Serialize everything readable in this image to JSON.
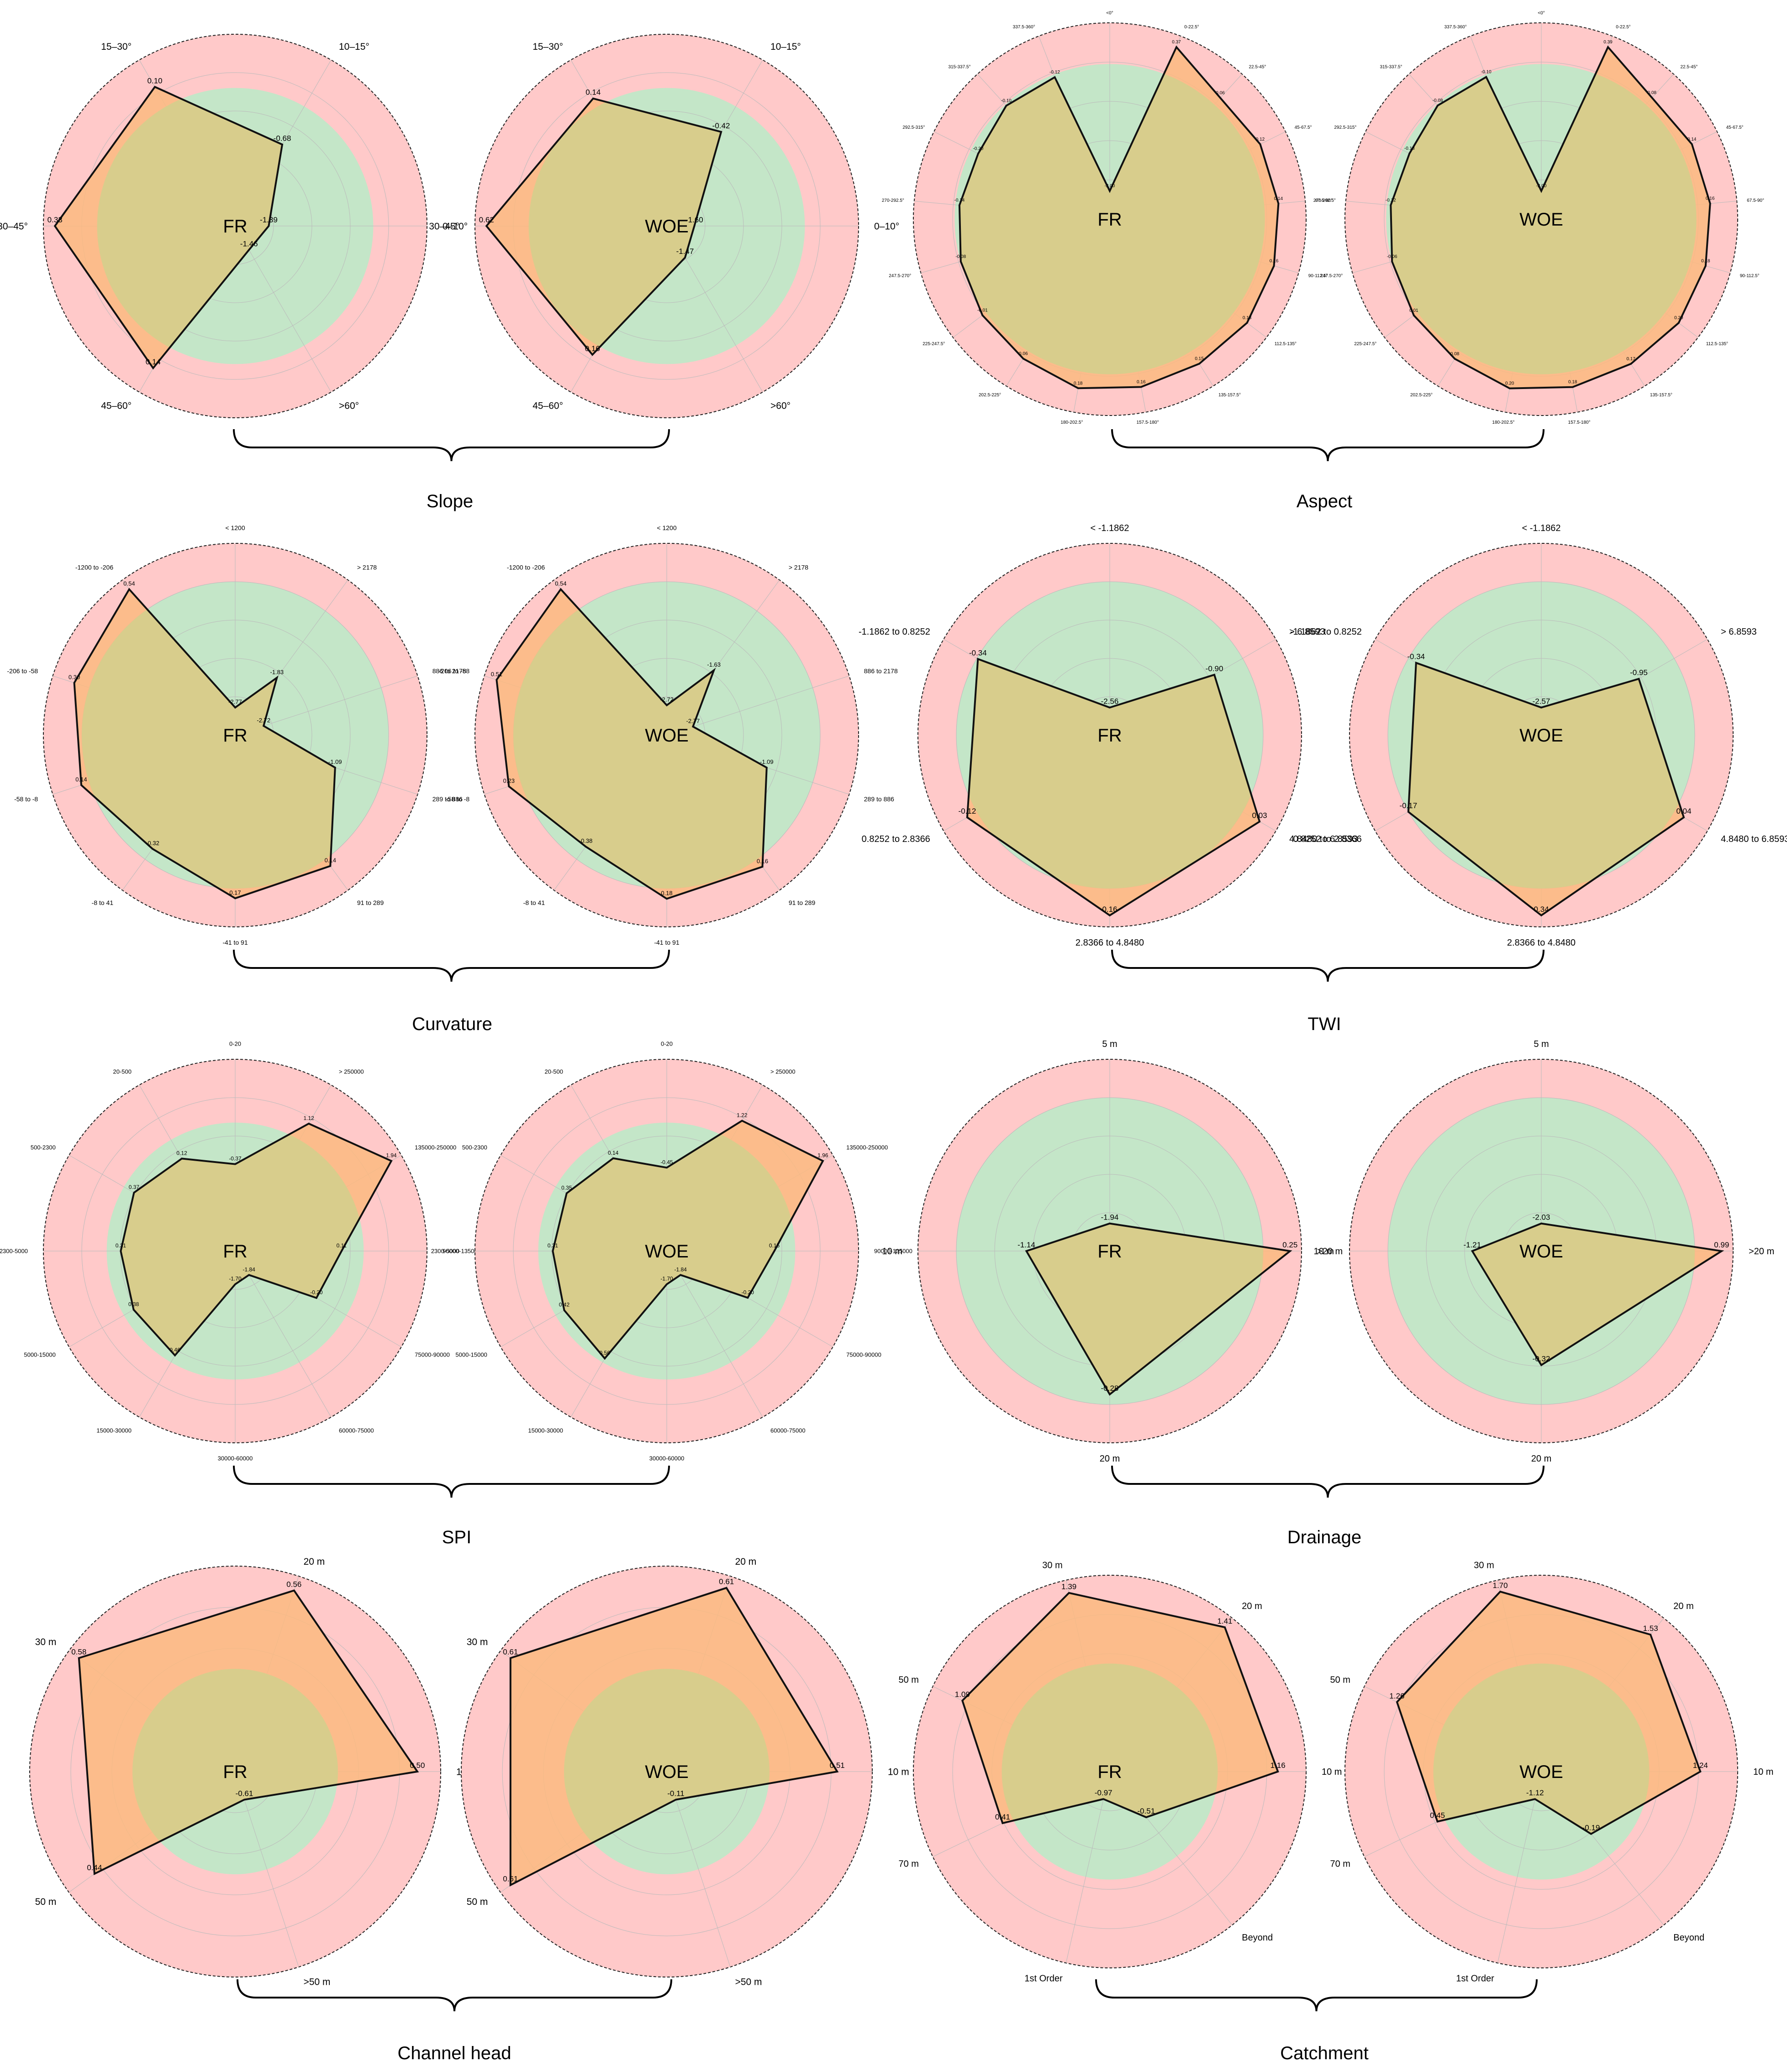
{
  "colors": {
    "outer": "#ffc9c9",
    "inner": "#c4e6c8",
    "fill_mix": "#d8cd8c",
    "fill_over": "#fcba80",
    "polyline": "#111111"
  },
  "groups": [
    {
      "caption": "Slope"
    },
    {
      "caption": "Aspect"
    },
    {
      "caption": "Curvature"
    },
    {
      "caption": "TWI"
    },
    {
      "caption": "SPI"
    },
    {
      "caption": "Drainage"
    },
    {
      "caption": "Channel head"
    },
    {
      "caption": "Catchment"
    }
  ],
  "chart_data": [
    {
      "type": "radar",
      "title": "FR",
      "group": "Slope",
      "categories": [
        "0–10°",
        "10–15°",
        "15–30°",
        "30–45°",
        "45–60°",
        ">60°"
      ],
      "values": [
        -1.39,
        -0.68,
        0.1,
        0.33,
        0.14,
        -1.46
      ],
      "inner_radius": 0.72
    },
    {
      "type": "radar",
      "title": "WOE",
      "group": "Slope",
      "categories": [
        "0–10°",
        "10–15°",
        "15–30°",
        "30–45°",
        "45–60°",
        ">60°"
      ],
      "values": [
        -1.6,
        -0.42,
        0.14,
        0.62,
        0.16,
        -1.47
      ],
      "inner_radius": 0.72
    },
    {
      "type": "radar",
      "title": "FR",
      "group": "Aspect",
      "categories": [
        "<0°",
        "0-22.5°",
        "22.5-45°",
        "45-67.5°",
        "67.5-90°",
        "90-112.5°",
        "112.5-135°",
        "135-157.5°",
        "157.5-180°",
        "180-202.5°",
        "202.5-225°",
        "225-247.5°",
        "247.5-270°",
        "270-292.5°",
        "292.5-315°",
        "315-337.5°",
        "337.5-360°"
      ],
      "values": [
        -2.0,
        0.37,
        0.06,
        0.12,
        0.14,
        0.16,
        0.18,
        0.15,
        0.16,
        0.18,
        0.06,
        -0.01,
        -0.08,
        -0.14,
        -0.2,
        -0.1,
        -0.12
      ],
      "inner_radius": 0.79
    },
    {
      "type": "radar",
      "title": "WOE",
      "group": "Aspect",
      "categories": [
        "<0°",
        "0-22.5°",
        "22.5-45°",
        "45-67.5°",
        "67.5-90°",
        "90-112.5°",
        "112.5-135°",
        "135-157.5°",
        "157.5-180°",
        "180-202.5°",
        "202.5-225°",
        "225-247.5°",
        "247.5-270°",
        "270-292.5°",
        "292.5-315°",
        "315-337.5°",
        "337.5-360°"
      ],
      "values": [
        -2.0,
        0.39,
        0.08,
        0.14,
        0.16,
        0.18,
        0.2,
        0.17,
        0.18,
        0.2,
        0.08,
        0.01,
        -0.06,
        -0.12,
        -0.18,
        -0.08,
        -0.1
      ],
      "inner_radius": 0.79
    },
    {
      "type": "radar",
      "title": "FR",
      "group": "Curvature",
      "categories": [
        "< 1200",
        "> 2178",
        "886 to 2178",
        "289 to 886",
        "91 to 289",
        "-41 to 91",
        "-8 to 41",
        "-58 to -8",
        "-206 to -58",
        "-1200 to -206"
      ],
      "values": [
        -2.77,
        -1.83,
        -2.72,
        -1.09,
        0.14,
        0.17,
        -0.32,
        0.14,
        0.3,
        0.54
      ],
      "inner_radius": 0.8
    },
    {
      "type": "radar",
      "title": "WOE",
      "group": "Curvature",
      "categories": [
        "< 1200",
        "> 2178",
        "886 to 2178",
        "289 to 886",
        "91 to 289",
        "-41 to 91",
        "-8 to 41",
        "-58 to -8",
        "-206 to -58",
        "-1200 to -206"
      ],
      "values": [
        -2.72,
        -1.63,
        -2.77,
        -1.09,
        0.16,
        0.18,
        -0.38,
        0.23,
        0.51,
        0.54
      ],
      "inner_radius": 0.8
    },
    {
      "type": "radar",
      "title": "FR",
      "group": "TWI",
      "categories": [
        "< -1.1862",
        "> 6.8593",
        "4.8480 to 6.8593",
        "2.8366 to 4.8480",
        "0.8252 to 2.8366",
        "-1.1862 to 0.8252"
      ],
      "values": [
        -2.56,
        -0.9,
        0.03,
        0.16,
        -0.12,
        -0.34
      ],
      "inner_radius": 0.8
    },
    {
      "type": "radar",
      "title": "WOE",
      "group": "TWI",
      "categories": [
        "< -1.1862",
        "> 6.8593",
        "4.8480 to 6.8593",
        "2.8366 to 4.8480",
        "0.8252 to 2.8366",
        "-1.1862 to 0.8252"
      ],
      "values": [
        -2.57,
        -0.95,
        0.04,
        0.34,
        -0.17,
        -0.34
      ],
      "inner_radius": 0.8
    },
    {
      "type": "radar",
      "title": "FR",
      "group": "SPI",
      "categories": [
        "0-20",
        "> 250000",
        "135000-250000",
        "90000-135000",
        "75000-90000",
        "60000-75000",
        "30000-60000",
        "15000-30000",
        "5000-15000",
        "2300-5000",
        "500-2300",
        "20-500"
      ],
      "values": [
        -0.37,
        1.12,
        1.94,
        0.11,
        -0.2,
        -1.84,
        -1.7,
        0.46,
        0.38,
        0.31,
        0.37,
        0.12
      ],
      "inner_radius": 0.67
    },
    {
      "type": "radar",
      "title": "WOE",
      "group": "SPI",
      "categories": [
        "0-20",
        "> 250000",
        "135000-250000",
        "90000-135000",
        "75000-90000",
        "60000-75000",
        "30000-60000",
        "15000-30000",
        "5000-15000",
        "2300-5000",
        "500-2300",
        "20-500"
      ],
      "values": [
        -0.45,
        1.22,
        1.96,
        0.15,
        -0.2,
        -1.84,
        -1.7,
        0.56,
        0.42,
        0.31,
        0.35,
        0.14
      ],
      "inner_radius": 0.67
    },
    {
      "type": "radar",
      "title": "FR",
      "group": "Drainage",
      "categories": [
        "5 m",
        ">20 m",
        "20 m",
        "10 m"
      ],
      "values": [
        -1.94,
        0.25,
        -0.28,
        -1.14
      ],
      "inner_radius": 0.8
    },
    {
      "type": "radar",
      "title": "WOE",
      "group": "Drainage",
      "categories": [
        "5 m",
        ">20 m",
        "20 m",
        "10 m"
      ],
      "values": [
        -2.03,
        0.99,
        -0.32,
        -1.21
      ],
      "inner_radius": 0.8
    },
    {
      "type": "radar",
      "title": "FR",
      "group": "Channel head",
      "categories": [
        "10 m",
        "20 m",
        "30 m",
        "50 m",
        ">50 m"
      ],
      "values": [
        0.5,
        0.56,
        0.58,
        0.44,
        -0.61
      ],
      "inner_radius": 0.5
    },
    {
      "type": "radar",
      "title": "WOE",
      "group": "Channel head",
      "categories": [
        "10 m",
        "20 m",
        "30 m",
        "50 m",
        ">50 m"
      ],
      "values": [
        0.51,
        0.61,
        0.61,
        0.61,
        -0.11
      ],
      "inner_radius": 0.5
    },
    {
      "type": "radar",
      "title": "FR",
      "group": "Catchment",
      "categories": [
        "10 m",
        "20 m",
        "30 m",
        "50 m",
        "70 m",
        "1st Order",
        "Beyond"
      ],
      "values": [
        1.16,
        1.41,
        1.39,
        1.09,
        0.41,
        -0.97,
        -0.51
      ],
      "inner_radius": 0.55
    },
    {
      "type": "radar",
      "title": "WOE",
      "group": "Catchment",
      "categories": [
        "10 m",
        "20 m",
        "30 m",
        "50 m",
        "70 m",
        "1st Order",
        "Beyond"
      ],
      "values": [
        1.24,
        1.53,
        1.7,
        1.26,
        0.45,
        -1.12,
        -0.19
      ],
      "inner_radius": 0.55
    }
  ]
}
